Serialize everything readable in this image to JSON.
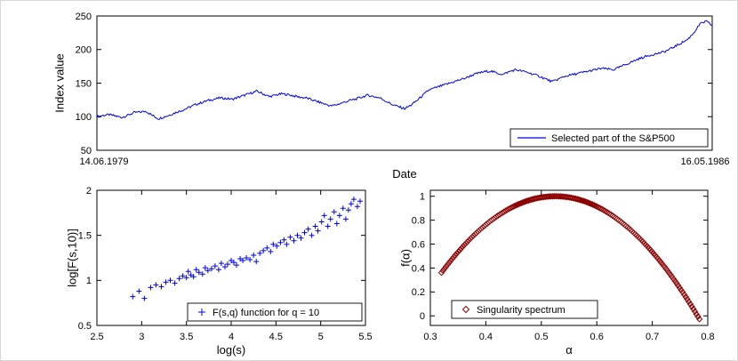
{
  "figure": {
    "background": "#ffffff",
    "axes_color": "#000000",
    "text_color": "#000000"
  },
  "chart_data": [
    {
      "type": "line",
      "title": "",
      "xlabel": "Date",
      "ylabel": "Index value",
      "x_start_label": "14.06.1979",
      "x_end_label": "16.05.1986",
      "ylim": [
        50,
        250
      ],
      "yticks": [
        50,
        100,
        150,
        200,
        250
      ],
      "legend": "Selected part of the S&P500",
      "color": "#0000ee",
      "values": [
        100,
        102,
        103,
        101,
        99,
        102,
        106,
        107,
        108,
        102,
        97,
        100,
        103,
        107,
        110,
        114,
        118,
        121,
        124,
        126,
        128,
        127,
        126,
        129,
        132,
        135,
        138,
        134,
        130,
        132,
        134,
        133,
        131,
        129,
        128,
        125,
        122,
        119,
        116,
        118,
        121,
        124,
        126,
        129,
        132,
        130,
        128,
        123,
        118,
        115,
        112,
        117,
        124,
        132,
        140,
        143,
        146,
        149,
        152,
        155,
        158,
        162,
        165,
        167,
        168,
        165,
        163,
        167,
        170,
        168,
        166,
        163,
        160,
        156,
        152,
        156,
        160,
        162,
        164,
        166,
        168,
        170,
        172,
        171,
        170,
        174,
        178,
        182,
        186,
        189,
        192,
        194,
        196,
        200,
        205,
        210,
        215,
        225,
        238,
        242,
        236
      ]
    },
    {
      "type": "scatter",
      "title": "",
      "xlabel": "log(s)",
      "ylabel": "log[F(s,10)]",
      "xlim": [
        2.5,
        5.5
      ],
      "ylim": [
        0.5,
        2
      ],
      "xticks": [
        2.5,
        3,
        3.5,
        4,
        4.5,
        5,
        5.5
      ],
      "yticks": [
        0.5,
        1,
        1.5,
        2
      ],
      "legend": "F(s,q) function for q = 10",
      "marker": "plus",
      "color": "#0000ee",
      "points": [
        [
          2.9,
          0.82
        ],
        [
          2.97,
          0.88
        ],
        [
          3.03,
          0.8
        ],
        [
          3.1,
          0.92
        ],
        [
          3.16,
          0.95
        ],
        [
          3.22,
          0.93
        ],
        [
          3.27,
          0.98
        ],
        [
          3.32,
          1.0
        ],
        [
          3.37,
          0.97
        ],
        [
          3.42,
          1.02
        ],
        [
          3.46,
          1.05
        ],
        [
          3.5,
          1.03
        ],
        [
          3.52,
          1.1
        ],
        [
          3.55,
          1.06
        ],
        [
          3.58,
          1.04
        ],
        [
          3.61,
          1.12
        ],
        [
          3.64,
          1.09
        ],
        [
          3.68,
          1.07
        ],
        [
          3.71,
          1.14
        ],
        [
          3.74,
          1.11
        ],
        [
          3.78,
          1.13
        ],
        [
          3.82,
          1.16
        ],
        [
          3.86,
          1.12
        ],
        [
          3.89,
          1.19
        ],
        [
          3.93,
          1.15
        ],
        [
          3.96,
          1.18
        ],
        [
          4.0,
          1.22
        ],
        [
          4.03,
          1.2
        ],
        [
          4.06,
          1.17
        ],
        [
          4.1,
          1.24
        ],
        [
          4.13,
          1.22
        ],
        [
          4.17,
          1.25
        ],
        [
          4.21,
          1.23
        ],
        [
          4.25,
          1.28
        ],
        [
          4.28,
          1.21
        ],
        [
          4.32,
          1.3
        ],
        [
          4.36,
          1.33
        ],
        [
          4.4,
          1.36
        ],
        [
          4.44,
          1.32
        ],
        [
          4.47,
          1.4
        ],
        [
          4.51,
          1.38
        ],
        [
          4.55,
          1.42
        ],
        [
          4.59,
          1.45
        ],
        [
          4.62,
          1.4
        ],
        [
          4.66,
          1.48
        ],
        [
          4.7,
          1.44
        ],
        [
          4.74,
          1.5
        ],
        [
          4.78,
          1.47
        ],
        [
          4.82,
          1.53
        ],
        [
          4.86,
          1.57
        ],
        [
          4.9,
          1.5
        ],
        [
          4.94,
          1.6
        ],
        [
          4.97,
          1.55
        ],
        [
          5.01,
          1.65
        ],
        [
          5.04,
          1.72
        ],
        [
          5.08,
          1.6
        ],
        [
          5.11,
          1.68
        ],
        [
          5.15,
          1.76
        ],
        [
          5.18,
          1.63
        ],
        [
          5.21,
          1.72
        ],
        [
          5.25,
          1.8
        ],
        [
          5.28,
          1.68
        ],
        [
          5.31,
          1.78
        ],
        [
          5.34,
          1.85
        ],
        [
          5.37,
          1.9
        ],
        [
          5.41,
          1.82
        ],
        [
          5.44,
          1.88
        ]
      ]
    },
    {
      "type": "scatter",
      "title": "",
      "xlabel": "α",
      "ylabel": "f(α)",
      "xlim": [
        0.3,
        0.8
      ],
      "ylim": [
        -0.08,
        1.05
      ],
      "xticks": [
        0.3,
        0.4,
        0.5,
        0.6,
        0.7,
        0.8
      ],
      "yticks": [
        0,
        0.2,
        0.4,
        0.6,
        0.8,
        1
      ],
      "legend": "Singularity spectrum",
      "marker": "diamond",
      "color": "#8b0000",
      "curve": {
        "alpha_min": 0.32,
        "alpha_max": 0.785,
        "peak_alpha": 0.525,
        "peak_f": 1.0,
        "curvature": 15.2,
        "n_points": 170
      }
    }
  ]
}
